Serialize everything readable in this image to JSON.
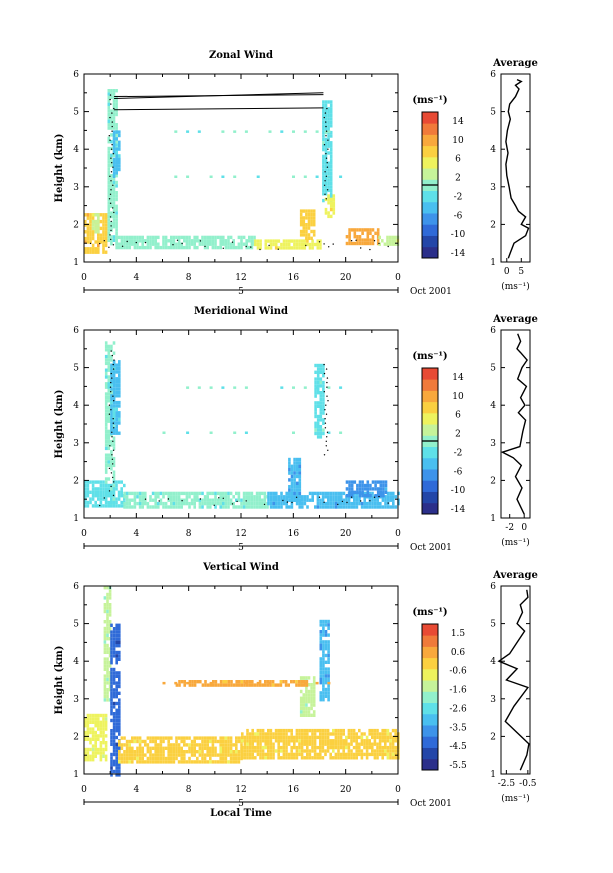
{
  "colors": {
    "scale": [
      "#2b2f8a",
      "#2346a8",
      "#2f6ad8",
      "#3d93ea",
      "#49bff0",
      "#5fe0e8",
      "#92f0cc",
      "#c6f39a",
      "#eef35e",
      "#fbd040",
      "#f8a83c",
      "#f07a3a",
      "#e84a34"
    ],
    "contour": "#000000",
    "line": "#000000"
  },
  "panels": [
    {
      "title": "Zonal Wind",
      "ylabel": "Height (km)",
      "yticks": [
        "1",
        "2",
        "3",
        "4",
        "5",
        "6"
      ],
      "xticks": [
        "0",
        "4",
        "8",
        "12",
        "16",
        "20",
        "0"
      ],
      "date_marker": "5",
      "date_label": "Oct 2001",
      "xlabel": "",
      "colorbar": {
        "unit": "(ms⁻¹)",
        "ticks": [
          "14",
          "10",
          "6",
          "2",
          "-2",
          "-6",
          "-10",
          "-14"
        ],
        "zero_line_value": "0"
      },
      "average": {
        "title": "Average",
        "xticks": [
          "0",
          "5"
        ],
        "xunit": "(ms⁻¹)",
        "yticks": [
          "1",
          "2",
          "3",
          "4",
          "5",
          "6"
        ]
      }
    },
    {
      "title": "Meridional Wind",
      "ylabel": "Height (km)",
      "yticks": [
        "1",
        "2",
        "3",
        "4",
        "5",
        "6"
      ],
      "xticks": [
        "0",
        "4",
        "8",
        "12",
        "16",
        "20",
        "0"
      ],
      "date_marker": "5",
      "date_label": "Oct 2001",
      "xlabel": "",
      "colorbar": {
        "unit": "(ms⁻¹)",
        "ticks": [
          "14",
          "10",
          "6",
          "2",
          "-2",
          "-6",
          "-10",
          "-14"
        ],
        "zero_line_value": "0"
      },
      "average": {
        "title": "Average",
        "xticks": [
          "-2",
          "0"
        ],
        "xunit": "(ms⁻¹)",
        "yticks": [
          "1",
          "2",
          "3",
          "4",
          "5",
          "6"
        ]
      }
    },
    {
      "title": "Vertical Wind",
      "ylabel": "Height (km)",
      "yticks": [
        "1",
        "2",
        "3",
        "4",
        "5",
        "6"
      ],
      "xticks": [
        "0",
        "4",
        "8",
        "12",
        "16",
        "20",
        "0"
      ],
      "date_marker": "5",
      "date_label": "Oct 2001",
      "xlabel": "Local Time",
      "colorbar": {
        "unit": "(ms⁻¹)",
        "ticks": [
          "1.5",
          "0.6",
          "-0.6",
          "-1.6",
          "-2.6",
          "-3.5",
          "-4.5",
          "-5.5"
        ],
        "zero_line_value": ""
      },
      "average": {
        "title": "Average",
        "xticks": [
          "-2.5",
          "-0.5"
        ],
        "xunit": "(ms⁻¹)",
        "yticks": [
          "1",
          "2",
          "3",
          "4",
          "5",
          "6"
        ]
      }
    }
  ],
  "chart_data": [
    {
      "type": "heatmap",
      "title": "Zonal Wind",
      "xlabel": "",
      "ylabel": "Height (km)",
      "xlim": [
        0,
        24
      ],
      "ylim": [
        1,
        6
      ],
      "x_unit": "local hour",
      "colorbar_range": [
        -16,
        16
      ],
      "regions": [
        {
          "x": [
            1.8,
            2.4
          ],
          "y": [
            1.5,
            5.6
          ],
          "value": -1
        },
        {
          "x": [
            2.2,
            2.6
          ],
          "y": [
            3.3,
            4.5
          ],
          "value": -4
        },
        {
          "x": [
            0.0,
            1.6
          ],
          "y": [
            1.3,
            2.3
          ],
          "value": 8
        },
        {
          "x": [
            0.6,
            1.0
          ],
          "y": [
            1.8,
            2.3
          ],
          "value": 3
        },
        {
          "x": [
            2.4,
            13.0
          ],
          "y": [
            1.4,
            1.7
          ],
          "value": 0
        },
        {
          "x": [
            13.0,
            18.0
          ],
          "y": [
            1.4,
            1.6
          ],
          "value": 5
        },
        {
          "x": [
            18.2,
            18.8
          ],
          "y": [
            2.6,
            5.3
          ],
          "value": -2
        },
        {
          "x": [
            18.4,
            19.0
          ],
          "y": [
            2.2,
            2.8
          ],
          "value": 6
        },
        {
          "x": [
            20.0,
            22.5
          ],
          "y": [
            1.5,
            1.9
          ],
          "value": 10
        },
        {
          "x": [
            22.5,
            24.0
          ],
          "y": [
            1.5,
            1.7
          ],
          "value": 3
        },
        {
          "x": [
            16.5,
            17.5
          ],
          "y": [
            1.6,
            2.4
          ],
          "value": 7
        }
      ],
      "average_profile": {
        "xlabel": "(ms⁻¹)",
        "xlim": [
          -2,
          8
        ],
        "x": [
          0.5,
          1.5,
          2.5,
          6.5,
          7.5,
          5.0,
          6.5,
          4.0,
          3.0,
          1.5,
          0.8,
          0.0,
          -0.3,
          0.4,
          -0.3,
          0.2,
          1.2,
          0.5,
          1.0,
          3.0,
          4.2,
          3.0,
          5.0,
          3.5
        ],
        "y": [
          1.1,
          1.3,
          1.5,
          1.7,
          1.9,
          2.0,
          2.2,
          2.35,
          2.5,
          2.7,
          3.0,
          3.3,
          3.6,
          3.9,
          4.2,
          4.5,
          4.8,
          5.0,
          5.2,
          5.4,
          5.6,
          5.7,
          5.8,
          5.85
        ]
      }
    },
    {
      "type": "heatmap",
      "title": "Meridional Wind",
      "xlabel": "",
      "ylabel": "Height (km)",
      "xlim": [
        0,
        24
      ],
      "ylim": [
        1,
        6
      ],
      "x_unit": "local hour",
      "colorbar_range": [
        -16,
        16
      ],
      "regions": [
        {
          "x": [
            1.6,
            2.2
          ],
          "y": [
            1.4,
            5.7
          ],
          "value": -1
        },
        {
          "x": [
            2.0,
            2.6
          ],
          "y": [
            3.3,
            5.2
          ],
          "value": -4
        },
        {
          "x": [
            0.0,
            3.0
          ],
          "y": [
            1.3,
            2.0
          ],
          "value": -2
        },
        {
          "x": [
            3.0,
            14.0
          ],
          "y": [
            1.3,
            1.7
          ],
          "value": -1
        },
        {
          "x": [
            14.0,
            24.0
          ],
          "y": [
            1.3,
            1.7
          ],
          "value": -5
        },
        {
          "x": [
            15.6,
            16.4
          ],
          "y": [
            1.5,
            2.6
          ],
          "value": -6
        },
        {
          "x": [
            17.6,
            18.2
          ],
          "y": [
            3.2,
            5.1
          ],
          "value": -2
        },
        {
          "x": [
            20.0,
            23.0
          ],
          "y": [
            1.6,
            2.0
          ],
          "value": -7
        }
      ],
      "average_profile": {
        "xlabel": "(ms⁻¹)",
        "xlim": [
          -3.2,
          0.8
        ],
        "x": [
          0.0,
          -1.0,
          -0.3,
          -1.2,
          -0.4,
          -1.5,
          -3.0,
          -0.6,
          -0.2,
          0.2,
          -0.8,
          0.1,
          -0.5,
          0.3,
          -0.9,
          -0.3,
          0.4,
          -0.5,
          -1.0,
          -0.5,
          -0.9
        ],
        "y": [
          1.1,
          1.5,
          1.8,
          2.1,
          2.4,
          2.6,
          2.75,
          2.9,
          3.3,
          3.6,
          3.8,
          4.0,
          4.2,
          4.5,
          4.7,
          5.0,
          5.2,
          5.4,
          5.5,
          5.7,
          5.9
        ]
      }
    },
    {
      "type": "heatmap",
      "title": "Vertical Wind",
      "xlabel": "Local Time",
      "ylabel": "Height (km)",
      "xlim": [
        0,
        24
      ],
      "ylim": [
        1,
        6
      ],
      "x_unit": "local hour",
      "colorbar_range": [
        -6,
        2
      ],
      "regions": [
        {
          "x": [
            1.5,
            2.0
          ],
          "y": [
            3.0,
            6.0
          ],
          "value": -1.6
        },
        {
          "x": [
            2.0,
            2.6
          ],
          "y": [
            1.0,
            5.0
          ],
          "value": -4.5
        },
        {
          "x": [
            0.0,
            1.6
          ],
          "y": [
            1.4,
            2.6
          ],
          "value": -1.0
        },
        {
          "x": [
            2.6,
            12.0
          ],
          "y": [
            1.3,
            2.0
          ],
          "value": -0.3
        },
        {
          "x": [
            12.0,
            24.0
          ],
          "y": [
            1.4,
            2.2
          ],
          "value": -0.3
        },
        {
          "x": [
            18.0,
            18.6
          ],
          "y": [
            3.0,
            5.1
          ],
          "value": -3.5
        },
        {
          "x": [
            16.5,
            17.5
          ],
          "y": [
            2.6,
            3.6
          ],
          "value": -1.6
        },
        {
          "x": [
            7.0,
            17.0
          ],
          "y": [
            3.4,
            3.5
          ],
          "value": 0.3
        }
      ],
      "average_profile": {
        "xlabel": "(ms⁻¹)",
        "xlim": [
          -3.0,
          -0.3
        ],
        "x": [
          -1.2,
          -0.6,
          -0.4,
          -1.5,
          -2.6,
          -1.8,
          -0.5,
          -2.5,
          -1.5,
          -3.2,
          -2.2,
          -1.5,
          -0.8,
          -1.5,
          -1.0,
          -1.2,
          -0.5,
          -0.6
        ],
        "y": [
          1.1,
          1.5,
          1.8,
          2.1,
          2.4,
          2.8,
          3.3,
          3.5,
          3.8,
          4.0,
          4.2,
          4.5,
          4.8,
          5.0,
          5.3,
          5.5,
          5.7,
          5.9
        ]
      }
    }
  ]
}
